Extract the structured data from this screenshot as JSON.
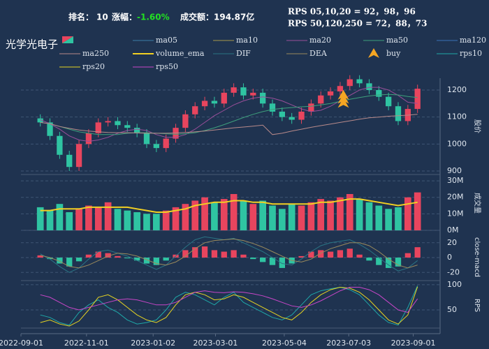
{
  "header": {
    "rank_label": "排名：",
    "rank": 10,
    "change_label": "涨幅：",
    "change": "-1.60%",
    "turnover": "成交额：194.87亿",
    "rps_line1": "RPS 05,10,20 = 92，98，96",
    "rps_line2": "RPS 50,120,250 = 72，88，73"
  },
  "chart_data": {
    "type": "candlestick",
    "title": "光学光电子",
    "x": [
      18,
      27,
      36,
      45,
      54,
      63,
      72,
      81,
      90,
      99,
      108,
      117,
      126,
      135,
      144,
      153,
      162,
      171,
      180,
      189,
      198,
      207,
      216,
      225,
      234,
      243,
      252,
      261,
      270,
      279,
      288,
      297,
      306,
      315,
      324,
      333,
      342,
      351,
      360,
      369
    ],
    "xlim": [
      0,
      390
    ],
    "xticks": [
      {
        "value": 0,
        "label": "2022-09-01"
      },
      {
        "value": 61,
        "label": "2022-11-01"
      },
      {
        "value": 123,
        "label": "2023-01-02"
      },
      {
        "value": 181,
        "label": "2023-03-01"
      },
      {
        "value": 245,
        "label": "2023-05-04"
      },
      {
        "value": 305,
        "label": "2023-07-03"
      },
      {
        "value": 365,
        "label": "2023-09-01"
      }
    ],
    "panels": {
      "price": {
        "ylim": [
          887,
          1244
        ],
        "yticks": [
          900,
          1000,
          1100,
          1200
        ],
        "axis_label": "股价"
      },
      "volume": {
        "ylim": [
          0,
          33
        ],
        "yticks": [
          {
            "value": 0,
            "label": "0M"
          },
          {
            "value": 10,
            "label": "10M"
          },
          {
            "value": 20,
            "label": "20M"
          },
          {
            "value": 30,
            "label": "30M"
          }
        ],
        "axis_label": "成交量"
      },
      "macd": {
        "ylim": [
          -31,
          32
        ],
        "yticks": [
          -20,
          0,
          20
        ],
        "axis_label": "close-macd"
      },
      "rps": {
        "ylim": [
          14,
          104
        ],
        "yticks": [
          50,
          100
        ],
        "axis_label": "RPS"
      }
    },
    "candles": {
      "up_color": "#e8455e",
      "down_color": "#2fc4a2",
      "open": [
        1095,
        1080,
        1030,
        960,
        915,
        1000,
        1040,
        1080,
        1085,
        1070,
        1060,
        1040,
        1000,
        985,
        1020,
        1060,
        1110,
        1140,
        1160,
        1150,
        1190,
        1210,
        1180,
        1190,
        1150,
        1120,
        1100,
        1090,
        1120,
        1150,
        1180,
        1195,
        1215,
        1240,
        1225,
        1200,
        1175,
        1140,
        1085,
        1130
      ],
      "high": [
        1110,
        1095,
        1045,
        975,
        1015,
        1055,
        1095,
        1100,
        1100,
        1085,
        1075,
        1055,
        1015,
        1035,
        1075,
        1125,
        1155,
        1175,
        1175,
        1205,
        1225,
        1225,
        1205,
        1205,
        1165,
        1135,
        1115,
        1135,
        1165,
        1195,
        1210,
        1230,
        1255,
        1255,
        1240,
        1215,
        1190,
        1155,
        1145,
        1220
      ],
      "low": [
        1065,
        1015,
        945,
        900,
        900,
        985,
        1025,
        1065,
        1055,
        1045,
        1025,
        985,
        970,
        970,
        1005,
        1045,
        1095,
        1125,
        1135,
        1135,
        1175,
        1165,
        1165,
        1135,
        1105,
        1085,
        1075,
        1075,
        1105,
        1135,
        1165,
        1180,
        1200,
        1210,
        1185,
        1160,
        1125,
        1070,
        1070,
        1115
      ],
      "close": [
        1080,
        1030,
        960,
        915,
        1000,
        1040,
        1080,
        1085,
        1070,
        1060,
        1040,
        1000,
        985,
        1020,
        1060,
        1110,
        1140,
        1160,
        1150,
        1190,
        1210,
        1180,
        1190,
        1150,
        1120,
        1100,
        1090,
        1120,
        1150,
        1180,
        1195,
        1215,
        1240,
        1225,
        1200,
        1175,
        1140,
        1085,
        1130,
        1205
      ]
    },
    "volume": {
      "values": [
        14,
        12,
        16,
        11,
        13,
        15,
        14,
        17,
        13,
        12,
        11,
        10,
        10,
        12,
        14,
        16,
        18,
        20,
        17,
        19,
        22,
        18,
        16,
        18,
        15,
        13,
        16,
        15,
        17,
        19,
        18,
        20,
        22,
        19,
        17,
        15,
        13,
        14,
        20,
        23
      ]
    },
    "macd_hist": {
      "up_color": "#e8455e",
      "down_color": "#2fc4a2",
      "values": [
        3,
        -2,
        -8,
        -12,
        -5,
        4,
        8,
        6,
        2,
        -1,
        -4,
        -8,
        -10,
        -4,
        4,
        10,
        14,
        15,
        10,
        8,
        10,
        4,
        -2,
        -6,
        -10,
        -14,
        -8,
        2,
        8,
        10,
        8,
        10,
        12,
        4,
        -4,
        -10,
        -14,
        -12,
        6,
        14
      ]
    },
    "legend": [
      {
        "name": "ma05",
        "color": "#3b7fa8"
      },
      {
        "name": "ma10",
        "color": "#a8984a"
      },
      {
        "name": "ma20",
        "color": "#9a4f9a",
        "panel": "price",
        "values": [
          1090,
          1075,
          1055,
          1030,
          1015,
          1010,
          1015,
          1025,
          1040,
          1050,
          1055,
          1050,
          1035,
          1025,
          1025,
          1035,
          1055,
          1080,
          1105,
          1125,
          1145,
          1160,
          1170,
          1175,
          1170,
          1160,
          1145,
          1130,
          1120,
          1125,
          1140,
          1160,
          1180,
          1200,
          1210,
          1210,
          1200,
          1180,
          1155,
          1150
        ]
      },
      {
        "name": "ma50",
        "color": "#3ea07c",
        "panel": "price",
        "values": [
          1080,
          1075,
          1065,
          1055,
          1045,
          1040,
          1035,
          1035,
          1035,
          1040,
          1042,
          1042,
          1040,
          1038,
          1036,
          1038,
          1042,
          1050,
          1060,
          1072,
          1085,
          1098,
          1110,
          1120,
          1128,
          1132,
          1135,
          1138,
          1140,
          1145,
          1150,
          1158,
          1166,
          1172,
          1178,
          1182,
          1184,
          1182,
          1176,
          1172
        ]
      },
      {
        "name": "ma120",
        "color": "#3a72b8"
      },
      {
        "name": "ma250",
        "color": "#b88a8a",
        "panel": "price",
        "values": [
          1080,
          1075,
          1065,
          1058,
          1052,
          1048,
          1045,
          1043,
          1042,
          1042,
          1041,
          1040,
          1040,
          1040,
          1041,
          1043,
          1045,
          1048,
          1052,
          1056,
          1060,
          1063,
          1066,
          1070,
          1035,
          1040,
          1048,
          1055,
          1062,
          1068,
          1074,
          1080,
          1086,
          1092,
          1097,
          1100,
          1103,
          1105,
          1107,
          1110
        ]
      },
      {
        "name": "volume_ema",
        "color": "#f2d022",
        "panel": "volume",
        "width": 2,
        "values": [
          12,
          12,
          13,
          13,
          13,
          14,
          14,
          14,
          14,
          14,
          13,
          12,
          11,
          11,
          12,
          13,
          15,
          16,
          17,
          17,
          18,
          18,
          17,
          17,
          16,
          16,
          16,
          16,
          16,
          17,
          17,
          18,
          19,
          19,
          18,
          17,
          16,
          15,
          16,
          17
        ]
      },
      {
        "name": "DIF",
        "color": "#2a7585",
        "panel": "macd",
        "values": [
          5,
          -2,
          -12,
          -20,
          -14,
          -2,
          8,
          10,
          6,
          2,
          -4,
          -10,
          -16,
          -10,
          2,
          14,
          24,
          28,
          26,
          24,
          26,
          20,
          14,
          8,
          0,
          -8,
          -10,
          -2,
          8,
          16,
          20,
          22,
          24,
          18,
          10,
          0,
          -10,
          -18,
          -14,
          -4
        ]
      },
      {
        "name": "DEA",
        "color": "#9a8a5c",
        "panel": "macd",
        "values": [
          3,
          0,
          -5,
          -12,
          -14,
          -10,
          -4,
          2,
          6,
          5,
          2,
          -3,
          -8,
          -10,
          -6,
          2,
          12,
          20,
          23,
          24,
          25,
          23,
          19,
          14,
          8,
          2,
          -4,
          -6,
          -2,
          6,
          12,
          16,
          20,
          20,
          16,
          8,
          -2,
          -10,
          -14,
          -10
        ]
      },
      {
        "name": "buy",
        "color": "#f5a623",
        "marker": "arrow",
        "panel": "price",
        "x": [
          300,
          300,
          300
        ],
        "values": [
          1150,
          1165,
          1180
        ]
      },
      {
        "name": "rps10",
        "color": "#1fa8a8",
        "panel": "rps",
        "values": [
          40,
          35,
          25,
          20,
          45,
          60,
          70,
          55,
          45,
          30,
          22,
          25,
          30,
          50,
          75,
          85,
          80,
          70,
          60,
          75,
          85,
          65,
          55,
          45,
          35,
          30,
          40,
          60,
          80,
          88,
          92,
          95,
          90,
          80,
          60,
          40,
          25,
          20,
          55,
          98
        ]
      },
      {
        "name": "rps20",
        "color": "#e6d422",
        "panel": "rps",
        "values": [
          25,
          30,
          22,
          18,
          28,
          50,
          75,
          80,
          70,
          55,
          40,
          30,
          25,
          35,
          60,
          80,
          85,
          80,
          70,
          72,
          80,
          75,
          65,
          55,
          45,
          35,
          30,
          45,
          65,
          80,
          90,
          95,
          93,
          85,
          70,
          50,
          30,
          22,
          40,
          96
        ]
      },
      {
        "name": "rps50",
        "color": "#c846c8",
        "panel": "rps",
        "values": [
          80,
          75,
          65,
          55,
          50,
          55,
          60,
          65,
          70,
          72,
          70,
          65,
          60,
          60,
          65,
          75,
          85,
          88,
          85,
          84,
          86,
          85,
          82,
          78,
          72,
          65,
          58,
          55,
          60,
          68,
          78,
          88,
          95,
          95,
          90,
          80,
          65,
          50,
          45,
          72
        ]
      }
    ]
  }
}
